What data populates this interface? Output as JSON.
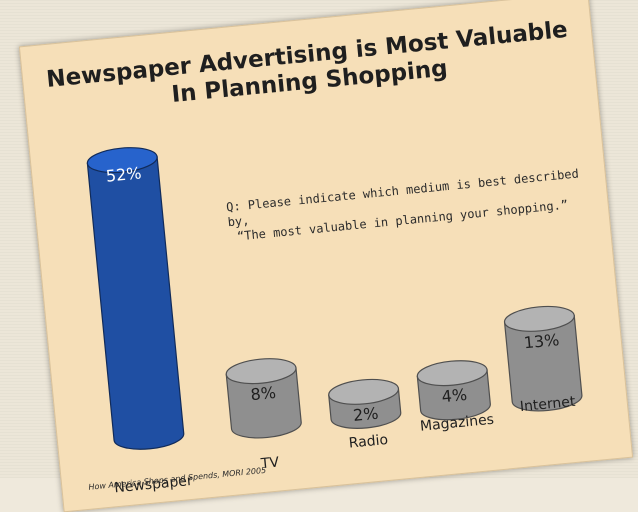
{
  "chart_data": {
    "type": "bar",
    "title": "Newspaper Advertising is Most Valuable In Planning Shopping",
    "title_lines": [
      "Newspaper Advertising is Most Valuable",
      "In Planning Shopping"
    ],
    "categories": [
      "Newspaper",
      "TV",
      "Radio",
      "Magazines",
      "Internet"
    ],
    "values": [
      52,
      8,
      2,
      4,
      13
    ],
    "data_labels": [
      "52%",
      "8%",
      "2%",
      "4%",
      "13%"
    ],
    "bar_colors": [
      "#1f4fa3",
      "#8f8f8f",
      "#8f8f8f",
      "#8f8f8f",
      "#8f8f8f"
    ],
    "ylim": [
      0,
      52
    ],
    "xlabel": "",
    "ylabel": "",
    "grid": false,
    "annotation_lines": [
      "Q: Please indicate which medium is best described by,",
      "“The most valuable in planning your shopping.”"
    ],
    "source": "How America Shops and Spends, MORI 2005"
  }
}
